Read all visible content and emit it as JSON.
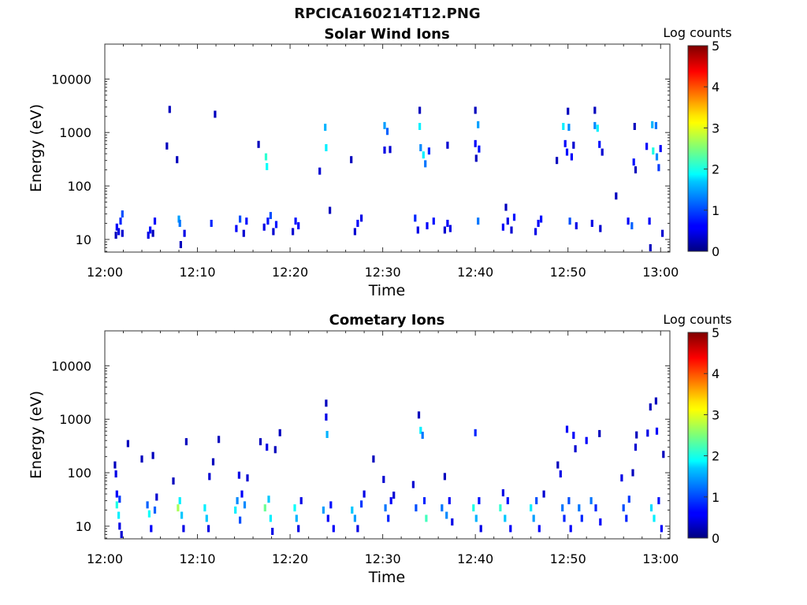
{
  "figure": {
    "title": "RPCICA160214T12.PNG",
    "colorbar": {
      "label": "Log counts",
      "ticks": [
        "0",
        "1",
        "2",
        "3",
        "4",
        "5"
      ],
      "range": [
        0,
        5
      ],
      "colormap": "jet"
    }
  },
  "chart_data": [
    {
      "type": "heatmap",
      "title": "Solar Wind Ions",
      "xlabel": "Time",
      "ylabel": "Energy (eV)",
      "x_ticks": [
        "12:00",
        "12:10",
        "12:20",
        "12:30",
        "12:40",
        "12:50",
        "13:00"
      ],
      "y_ticks": [
        "10",
        "100",
        "1000",
        "10000"
      ],
      "y_scale": "log",
      "xlim_min": [
        0,
        61
      ],
      "ylim_ev": [
        5.8,
        45000
      ],
      "clim": [
        0,
        5
      ],
      "cells": [
        [
          1.2,
          12,
          0.3
        ],
        [
          1.3,
          17,
          0.6
        ],
        [
          1.5,
          14,
          0.5
        ],
        [
          1.7,
          22,
          0.8
        ],
        [
          1.9,
          13,
          0.4
        ],
        [
          1.9,
          30,
          1.0
        ],
        [
          4.7,
          12,
          0.5
        ],
        [
          4.9,
          15,
          0.7
        ],
        [
          5.2,
          13,
          0.3
        ],
        [
          5.4,
          22,
          0.6
        ],
        [
          6.7,
          560,
          0.3
        ],
        [
          7.0,
          2700,
          0.3
        ],
        [
          7.8,
          310,
          0.3
        ],
        [
          8.0,
          24,
          1.4
        ],
        [
          8.1,
          20,
          1.2
        ],
        [
          8.2,
          8,
          0.3
        ],
        [
          8.6,
          13,
          0.5
        ],
        [
          11.5,
          20,
          0.8
        ],
        [
          11.9,
          2200,
          0.3
        ],
        [
          14.2,
          16,
          0.6
        ],
        [
          14.6,
          24,
          1.0
        ],
        [
          15.0,
          13,
          0.4
        ],
        [
          15.3,
          22,
          0.7
        ],
        [
          16.6,
          600,
          0.3
        ],
        [
          17.2,
          17,
          0.5
        ],
        [
          17.4,
          350,
          2.1
        ],
        [
          17.5,
          230,
          1.9
        ],
        [
          17.6,
          22,
          0.7
        ],
        [
          17.9,
          28,
          1.0
        ],
        [
          18.2,
          14,
          0.4
        ],
        [
          18.5,
          19,
          0.7
        ],
        [
          20.3,
          14,
          0.4
        ],
        [
          20.6,
          22,
          0.7
        ],
        [
          20.9,
          18,
          0.6
        ],
        [
          23.2,
          190,
          0.4
        ],
        [
          23.8,
          1250,
          1.5
        ],
        [
          23.9,
          520,
          1.8
        ],
        [
          24.3,
          35,
          0.3
        ],
        [
          26.6,
          310,
          0.3
        ],
        [
          27.0,
          14,
          0.4
        ],
        [
          27.3,
          20,
          0.6
        ],
        [
          27.7,
          25,
          0.5
        ],
        [
          30.2,
          1350,
          1.4
        ],
        [
          30.5,
          1050,
          1.1
        ],
        [
          30.2,
          470,
          0.5
        ],
        [
          30.8,
          480,
          0.4
        ],
        [
          33.5,
          25,
          0.8
        ],
        [
          33.8,
          15,
          0.5
        ],
        [
          34.0,
          2600,
          0.3
        ],
        [
          34.0,
          1300,
          1.8
        ],
        [
          34.1,
          520,
          1.3
        ],
        [
          34.4,
          380,
          1.8
        ],
        [
          34.6,
          260,
          1.2
        ],
        [
          34.8,
          18,
          0.6
        ],
        [
          35.0,
          450,
          0.8
        ],
        [
          35.5,
          22,
          0.7
        ],
        [
          36.7,
          15,
          0.4
        ],
        [
          37.0,
          20,
          0.6
        ],
        [
          37.3,
          16,
          0.5
        ],
        [
          37.0,
          580,
          0.4
        ],
        [
          40.0,
          2600,
          0.3
        ],
        [
          40.0,
          620,
          0.6
        ],
        [
          40.1,
          330,
          0.3
        ],
        [
          40.3,
          1400,
          1.4
        ],
        [
          40.3,
          22,
          1.2
        ],
        [
          40.4,
          490,
          0.7
        ],
        [
          43.0,
          17,
          0.6
        ],
        [
          43.3,
          40,
          0.3
        ],
        [
          43.5,
          22,
          0.5
        ],
        [
          43.9,
          15,
          0.4
        ],
        [
          44.2,
          26,
          0.7
        ],
        [
          46.5,
          14,
          0.5
        ],
        [
          46.8,
          20,
          0.6
        ],
        [
          47.1,
          24,
          0.7
        ],
        [
          48.8,
          300,
          0.3
        ],
        [
          49.5,
          1300,
          1.8
        ],
        [
          49.7,
          620,
          0.6
        ],
        [
          49.9,
          430,
          0.7
        ],
        [
          50.0,
          2500,
          0.3
        ],
        [
          50.1,
          1250,
          1.3
        ],
        [
          50.2,
          22,
          1.0
        ],
        [
          50.4,
          350,
          0.6
        ],
        [
          50.6,
          580,
          0.4
        ],
        [
          50.9,
          18,
          0.5
        ],
        [
          52.6,
          20,
          0.5
        ],
        [
          52.9,
          2600,
          0.3
        ],
        [
          52.9,
          1350,
          1.3
        ],
        [
          53.2,
          1200,
          1.8
        ],
        [
          53.4,
          600,
          0.7
        ],
        [
          53.5,
          16,
          0.4
        ],
        [
          53.7,
          430,
          0.4
        ],
        [
          55.2,
          65,
          0.3
        ],
        [
          56.5,
          22,
          0.6
        ],
        [
          56.9,
          18,
          1.1
        ],
        [
          57.1,
          280,
          0.7
        ],
        [
          57.3,
          200,
          0.3
        ],
        [
          57.2,
          1300,
          0.3
        ],
        [
          58.5,
          550,
          0.6
        ],
        [
          58.8,
          22,
          0.6
        ],
        [
          58.9,
          7,
          0.3
        ],
        [
          59.1,
          1400,
          1.5
        ],
        [
          59.2,
          450,
          2.0
        ],
        [
          59.5,
          1350,
          1.2
        ],
        [
          59.6,
          350,
          1.3
        ],
        [
          59.8,
          220,
          0.9
        ],
        [
          60.0,
          500,
          0.6
        ],
        [
          60.2,
          13,
          0.4
        ]
      ]
    },
    {
      "type": "heatmap",
      "title": "Cometary Ions",
      "xlabel": "Time",
      "ylabel": "Energy (eV)",
      "x_ticks": [
        "12:00",
        "12:10",
        "12:20",
        "12:30",
        "12:40",
        "12:50",
        "13:00"
      ],
      "y_ticks": [
        "10",
        "100",
        "1000",
        "10000"
      ],
      "y_scale": "log",
      "xlim_min": [
        0,
        61
      ],
      "ylim_ev": [
        5.8,
        45000
      ],
      "clim": [
        0,
        5
      ],
      "cells": [
        [
          1.1,
          140,
          0.3
        ],
        [
          1.2,
          95,
          0.5
        ],
        [
          1.3,
          40,
          0.6
        ],
        [
          1.3,
          25,
          2.0
        ],
        [
          1.5,
          16,
          1.8
        ],
        [
          1.6,
          10,
          0.5
        ],
        [
          1.8,
          7,
          0.4
        ],
        [
          1.6,
          32,
          0.9
        ],
        [
          2.5,
          350,
          0.3
        ],
        [
          4.0,
          180,
          0.3
        ],
        [
          4.6,
          25,
          1.1
        ],
        [
          4.8,
          17,
          1.9
        ],
        [
          5.0,
          9,
          0.6
        ],
        [
          5.2,
          210,
          0.3
        ],
        [
          5.4,
          20,
          1.1
        ],
        [
          5.6,
          35,
          0.4
        ],
        [
          7.4,
          70,
          0.3
        ],
        [
          7.9,
          22,
          2.7
        ],
        [
          8.1,
          30,
          1.8
        ],
        [
          8.3,
          16,
          1.6
        ],
        [
          8.5,
          9,
          0.5
        ],
        [
          8.8,
          380,
          0.3
        ],
        [
          10.8,
          22,
          1.8
        ],
        [
          11.0,
          14,
          1.6
        ],
        [
          11.2,
          9,
          0.5
        ],
        [
          11.3,
          85,
          0.4
        ],
        [
          11.7,
          160,
          0.3
        ],
        [
          12.3,
          420,
          0.3
        ],
        [
          14.1,
          20,
          1.8
        ],
        [
          14.3,
          30,
          1.3
        ],
        [
          14.5,
          90,
          0.5
        ],
        [
          14.6,
          13,
          1.0
        ],
        [
          14.8,
          40,
          0.6
        ],
        [
          15.1,
          25,
          1.3
        ],
        [
          15.4,
          80,
          0.4
        ],
        [
          16.8,
          380,
          0.3
        ],
        [
          17.3,
          22,
          2.4
        ],
        [
          17.5,
          300,
          0.5
        ],
        [
          17.7,
          32,
          1.6
        ],
        [
          17.9,
          14,
          1.8
        ],
        [
          18.1,
          8,
          0.5
        ],
        [
          18.4,
          270,
          0.3
        ],
        [
          18.9,
          560,
          0.3
        ],
        [
          20.5,
          22,
          1.9
        ],
        [
          20.7,
          14,
          1.5
        ],
        [
          20.9,
          9,
          0.5
        ],
        [
          21.2,
          30,
          0.5
        ],
        [
          23.6,
          20,
          1.4
        ],
        [
          23.9,
          2000,
          0.3
        ],
        [
          23.9,
          1100,
          0.5
        ],
        [
          24.0,
          520,
          1.5
        ],
        [
          24.1,
          14,
          0.6
        ],
        [
          24.4,
          25,
          0.7
        ],
        [
          24.7,
          9,
          0.6
        ],
        [
          26.7,
          20,
          1.6
        ],
        [
          27.0,
          14,
          1.4
        ],
        [
          27.3,
          9,
          0.5
        ],
        [
          27.7,
          26,
          0.9
        ],
        [
          28.0,
          40,
          0.5
        ],
        [
          29.0,
          180,
          0.3
        ],
        [
          30.1,
          75,
          0.4
        ],
        [
          30.3,
          22,
          1.2
        ],
        [
          30.6,
          14,
          0.8
        ],
        [
          30.9,
          30,
          0.6
        ],
        [
          31.2,
          38,
          0.4
        ],
        [
          33.3,
          60,
          0.4
        ],
        [
          33.6,
          22,
          1.0
        ],
        [
          33.9,
          1200,
          0.3
        ],
        [
          34.1,
          620,
          1.8
        ],
        [
          34.3,
          500,
          1.2
        ],
        [
          34.5,
          30,
          0.8
        ],
        [
          34.7,
          14,
          2.2
        ],
        [
          36.4,
          22,
          1.2
        ],
        [
          36.7,
          85,
          0.3
        ],
        [
          36.9,
          16,
          1.3
        ],
        [
          37.2,
          30,
          0.6
        ],
        [
          37.5,
          12,
          0.5
        ],
        [
          39.8,
          22,
          2.0
        ],
        [
          40.0,
          560,
          0.8
        ],
        [
          40.1,
          14,
          1.5
        ],
        [
          40.4,
          30,
          0.7
        ],
        [
          40.6,
          9,
          0.5
        ],
        [
          42.7,
          22,
          2.1
        ],
        [
          43.0,
          42,
          0.5
        ],
        [
          43.2,
          14,
          1.6
        ],
        [
          43.5,
          30,
          0.7
        ],
        [
          43.8,
          9,
          0.6
        ],
        [
          46.0,
          22,
          1.8
        ],
        [
          46.3,
          14,
          1.4
        ],
        [
          46.6,
          30,
          1.0
        ],
        [
          46.9,
          9,
          0.6
        ],
        [
          47.4,
          40,
          0.4
        ],
        [
          48.9,
          140,
          0.3
        ],
        [
          49.2,
          95,
          0.5
        ],
        [
          49.4,
          22,
          1.2
        ],
        [
          49.6,
          14,
          0.8
        ],
        [
          49.9,
          650,
          0.6
        ],
        [
          50.1,
          30,
          1.0
        ],
        [
          50.3,
          9,
          0.6
        ],
        [
          50.6,
          500,
          0.6
        ],
        [
          50.8,
          280,
          0.4
        ],
        [
          51.2,
          22,
          1.2
        ],
        [
          51.5,
          14,
          0.8
        ],
        [
          52.0,
          400,
          0.6
        ],
        [
          52.5,
          30,
          1.2
        ],
        [
          53.0,
          22,
          0.8
        ],
        [
          53.5,
          12,
          0.6
        ],
        [
          53.4,
          540,
          0.3
        ],
        [
          55.8,
          80,
          0.5
        ],
        [
          56.0,
          22,
          1.0
        ],
        [
          56.3,
          14,
          0.8
        ],
        [
          56.6,
          32,
          0.9
        ],
        [
          57.0,
          100,
          0.3
        ],
        [
          57.3,
          300,
          0.4
        ],
        [
          57.4,
          510,
          0.3
        ],
        [
          58.6,
          550,
          0.5
        ],
        [
          58.9,
          1700,
          0.3
        ],
        [
          59.0,
          22,
          1.7
        ],
        [
          59.3,
          14,
          1.8
        ],
        [
          59.5,
          2200,
          0.3
        ],
        [
          59.6,
          600,
          0.6
        ],
        [
          59.8,
          30,
          0.7
        ],
        [
          60.1,
          9,
          0.6
        ],
        [
          60.3,
          220,
          0.3
        ]
      ]
    }
  ]
}
